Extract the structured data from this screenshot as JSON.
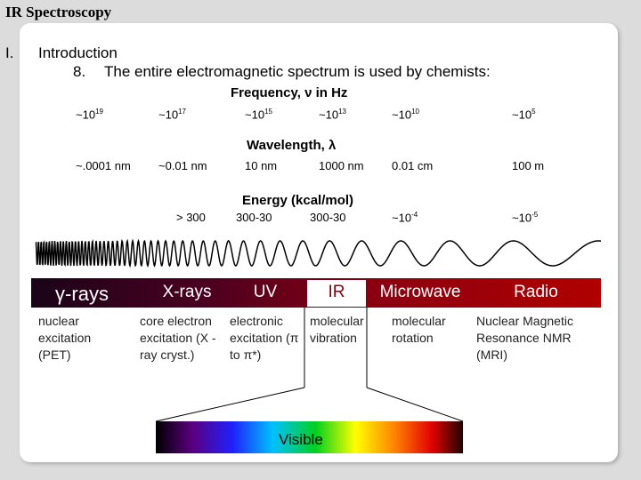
{
  "header": {
    "title": "IR Spectroscopy"
  },
  "outline": {
    "number": "I.",
    "heading": "Introduction",
    "item_number": "8.",
    "item_text": "The entire electromagnetic spectrum is used by chemists:"
  },
  "frequency": {
    "heading": "Frequency, ν in Hz",
    "values": [
      {
        "base": "~10",
        "exp": "19"
      },
      {
        "base": "~10",
        "exp": "17"
      },
      {
        "base": "~10",
        "exp": "15"
      },
      {
        "base": "~10",
        "exp": "13"
      },
      {
        "base": "~10",
        "exp": "10"
      },
      {
        "base": "~10",
        "exp": "5"
      }
    ]
  },
  "wavelength": {
    "heading": "Wavelength, λ",
    "values": [
      "~.0001 nm",
      "~0.01 nm",
      "10 nm",
      "1000 nm",
      "0.01 cm",
      "100 m"
    ]
  },
  "energy": {
    "heading": "Energy (kcal/mol)",
    "values": [
      {
        "base": "> 300"
      },
      {
        "base": "300-30"
      },
      {
        "base": "300-30"
      },
      {
        "base": "~10",
        "exp": "-4"
      },
      {
        "base": "~10",
        "exp": "-5"
      }
    ]
  },
  "bands": [
    {
      "name": "γ-rays",
      "description": "nuclear excitation (PET)"
    },
    {
      "name": "X-rays",
      "description": "core electron excitation (X -ray cryst.)"
    },
    {
      "name": "UV",
      "description": "electronic excitation (π to π*)"
    },
    {
      "name": "IR",
      "description": "molecular vibration"
    },
    {
      "name": "Microwave",
      "description": "molecular rotation"
    },
    {
      "name": "Radio",
      "description": "Nuclear Magnetic Resonance NMR (MRI)"
    }
  ],
  "visible": {
    "label": "Visible"
  }
}
